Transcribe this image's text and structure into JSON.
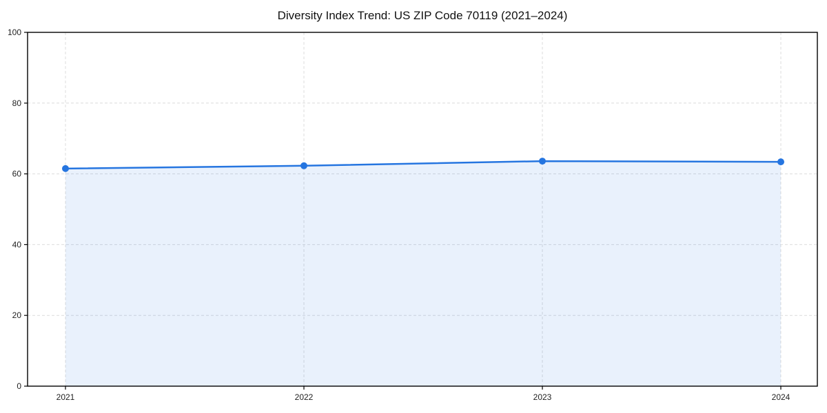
{
  "chart_data": {
    "type": "area",
    "title": "Diversity Index Trend: US ZIP Code 70119 (2021–2024)",
    "categories": [
      "2021",
      "2022",
      "2023",
      "2024"
    ],
    "series": [
      {
        "name": "Diversity Index",
        "values": [
          61.5,
          62.3,
          63.6,
          63.4
        ]
      }
    ],
    "xlabel": "",
    "ylabel": "",
    "ylim": [
      0,
      100
    ],
    "yticks": [
      0,
      20,
      40,
      60,
      80,
      100
    ],
    "grid": "dashed",
    "legend": "none",
    "markers": "circle",
    "colors": {
      "line": "#2575e0",
      "marker": "#2575e0",
      "fill": "#2575e0",
      "fill_opacity": 0.1,
      "grid": "#dcdcdc",
      "spine": "#000000",
      "text": "#1f1f1f"
    }
  }
}
